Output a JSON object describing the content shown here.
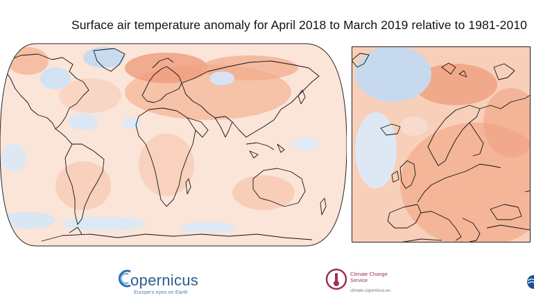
{
  "title": "Surface air temperature anomaly for April 2018 to March 2019 relative to 1981-2010",
  "colors": {
    "background": "#ffffff",
    "warm_light": "#fbe3d6",
    "warm_mid": "#f6bfa3",
    "warm_strong": "#ee9471",
    "cool_light": "#dde9f5",
    "cool_mid": "#bfd5ec",
    "coastline": "#111111"
  },
  "maps": [
    {
      "name": "world",
      "projection": "global",
      "icon": "world-anomaly-map"
    },
    {
      "name": "europe",
      "projection": "regional",
      "icon": "europe-anomaly-map"
    }
  ],
  "logos": {
    "copernicus": {
      "icon": "copernicus-logo-icon",
      "wordmark": "opernicus",
      "tagline": "Europe's eyes on Earth"
    },
    "c3s": {
      "icon": "c3s-thermometer-icon",
      "name": "Climate Change Service",
      "url": "climate.copernicus.eu"
    },
    "ecmwf": {
      "icon": "ecmwf-logo-icon"
    }
  }
}
